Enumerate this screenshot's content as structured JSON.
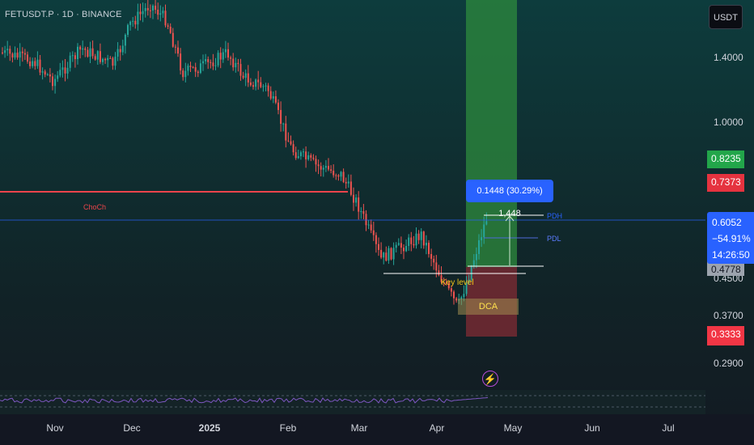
{
  "header": {
    "symbol": "FETUSDT.P · 1D · BINANCE"
  },
  "price_axis": {
    "currency": "USDT",
    "ticks": [
      "1.4000",
      "1.0000",
      "0.4500",
      "0.3700",
      "0.2900"
    ],
    "tags": {
      "tp_price": "0.8235",
      "entry_price": "0.7373",
      "stop_price": "0.3333",
      "key_level": "0.4778"
    },
    "current": {
      "price": "0.6052",
      "change": "−54.91%",
      "countdown": "14:26:50"
    }
  },
  "time_axis": {
    "ticks": [
      "Nov",
      "Dec",
      "2025",
      "Feb",
      "Mar",
      "Apr",
      "May",
      "Jun",
      "Jul"
    ]
  },
  "annotations": {
    "measure_label": "0.1448 (30.29%) 1,448",
    "choch": "ChoCh",
    "pdh": "PDH",
    "pdl": "PDL",
    "key_level": "Key level",
    "dca": "DCA",
    "alert_icon": "lightning-bolt-icon"
  },
  "colors": {
    "up": "#26a69a",
    "down": "#ef5350",
    "take_profit_zone": "#2e8b3e",
    "stop_zone": "#7a2a33",
    "accent": "#2962ff",
    "rsi_line": "#7e57c2"
  }
}
